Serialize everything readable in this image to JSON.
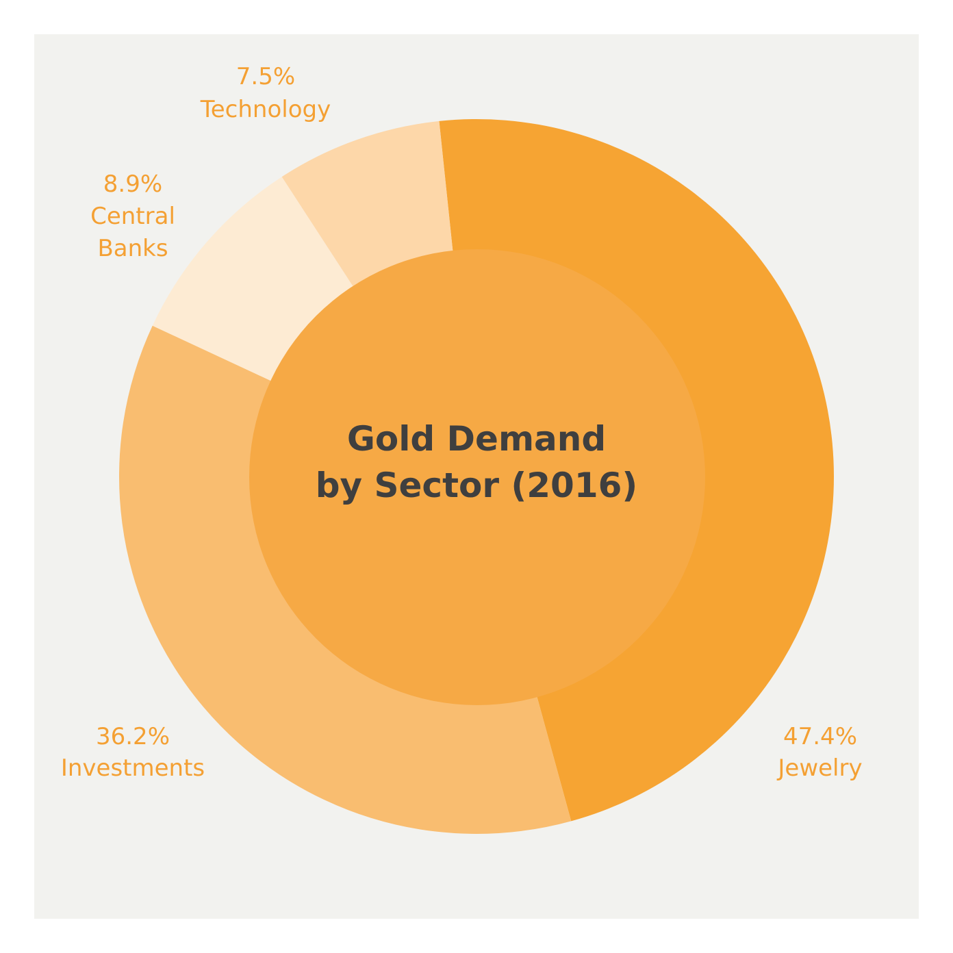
{
  "chart_data": {
    "type": "pie",
    "variant": "donut",
    "title_lines": [
      "Gold Demand",
      "by Sector (2016)"
    ],
    "start_angle_deg": -6,
    "slices": [
      {
        "label": "Jewelry",
        "value": 47.4,
        "value_label": "47.4%",
        "color": "#f6a433"
      },
      {
        "label": "Investments",
        "value": 36.2,
        "value_label": "36.2%",
        "color": "#f9bd70"
      },
      {
        "label": "Central Banks",
        "label_lines": [
          "Central",
          "Banks"
        ],
        "value": 8.9,
        "value_label": "8.9%",
        "color": "#fdebd3"
      },
      {
        "label": "Technology",
        "value": 7.5,
        "value_label": "7.5%",
        "color": "#fdd7a9"
      }
    ],
    "center_color": "#f6a945",
    "background": "#f2f2ef"
  }
}
